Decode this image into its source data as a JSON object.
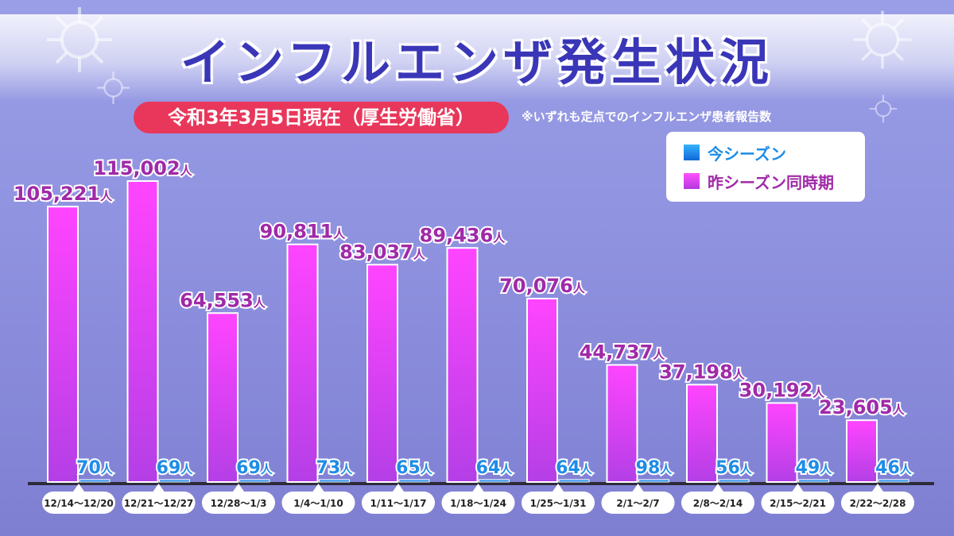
{
  "title": "インフルエンザ発生状況",
  "date_label": "令和3年3月5日現在（厚生労働省）",
  "note": "※いずれも定点でのインフルエンザ患者報告数",
  "colors": {
    "current": "#1e8de6",
    "previous": "#e640f0",
    "current_text": "#1e8de6",
    "previous_text": "#a02aa8",
    "pill": "#e8375a",
    "title": "#3a36b8"
  },
  "chart_data": {
    "type": "bar",
    "categories": [
      "12/14〜12/20",
      "12/21〜12/27",
      "12/28〜1/3",
      "1/4〜1/10",
      "1/11〜1/17",
      "1/18〜1/24",
      "1/25〜1/31",
      "2/1〜2/7",
      "2/8〜2/14",
      "2/15〜2/21",
      "2/22〜2/28"
    ],
    "series": [
      {
        "name": "昨シーズン同時期",
        "values": [
          105221,
          115002,
          64553,
          90811,
          83037,
          89436,
          70076,
          44737,
          37198,
          30192,
          23605
        ],
        "labels": [
          "105,221",
          "115,002",
          "64,553",
          "90,811",
          "83,037",
          "89,436",
          "70,076",
          "44,737",
          "37,198",
          "30,192",
          "23,605"
        ]
      },
      {
        "name": "今シーズン",
        "values": [
          70,
          69,
          69,
          73,
          65,
          64,
          64,
          98,
          56,
          49,
          46
        ],
        "labels": [
          "70",
          "69",
          "69",
          "73",
          "65",
          "64",
          "64",
          "98",
          "56",
          "49",
          "46"
        ]
      }
    ],
    "unit": "人",
    "ylim": [
      0,
      115002
    ],
    "legend_position": "top-right"
  }
}
